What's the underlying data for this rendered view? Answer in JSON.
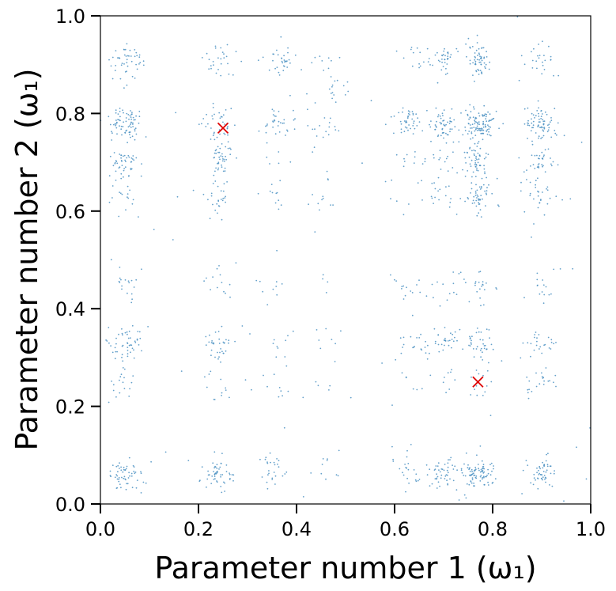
{
  "chart_data": {
    "type": "scatter",
    "title": "",
    "xlabel": "Parameter number 1 (ω₁)",
    "ylabel": "Parameter number 2 (ω₁)",
    "xlim": [
      0.0,
      1.0
    ],
    "ylim": [
      0.0,
      1.0
    ],
    "xticks": [
      "0.0",
      "0.2",
      "0.4",
      "0.6",
      "0.8",
      "1.0"
    ],
    "yticks": [
      "0.0",
      "0.2",
      "0.4",
      "0.6",
      "0.8",
      "1.0"
    ],
    "grid": false,
    "legend": "none",
    "colors": {
      "samples": "#4a90c2",
      "targets": "#dd0000"
    },
    "series": [
      {
        "kind": "samples",
        "marker": "dot",
        "pattern": "clusters at coordinate pairs drawn from {0.05, 0.25, 0.35, 0.63, 0.70, 0.77, 0.90} (some pairs dense)",
        "values": [
          [
            0.06,
            0.78
          ],
          [
            0.05,
            0.7
          ],
          [
            0.07,
            0.91
          ],
          [
            0.05,
            0.33
          ],
          [
            0.06,
            0.06
          ],
          [
            0.24,
            0.31
          ],
          [
            0.24,
            0.07
          ],
          [
            0.25,
            0.71
          ],
          [
            0.77,
            0.77
          ],
          [
            0.78,
            0.91
          ],
          [
            0.77,
            0.69
          ],
          [
            0.77,
            0.63
          ],
          [
            0.77,
            0.06
          ],
          [
            0.7,
            0.91
          ],
          [
            0.7,
            0.78
          ],
          [
            0.7,
            0.33
          ],
          [
            0.7,
            0.07
          ],
          [
            0.63,
            0.78
          ],
          [
            0.9,
            0.78
          ],
          [
            0.9,
            0.7
          ],
          [
            0.9,
            0.07
          ],
          [
            0.37,
            0.78
          ],
          [
            0.37,
            0.9
          ],
          [
            0.35,
            0.07
          ],
          [
            0.48,
            0.85
          ]
        ]
      },
      {
        "kind": "targets",
        "marker": "x",
        "values": [
          [
            0.25,
            0.77
          ],
          [
            0.77,
            0.25
          ]
        ]
      }
    ]
  }
}
